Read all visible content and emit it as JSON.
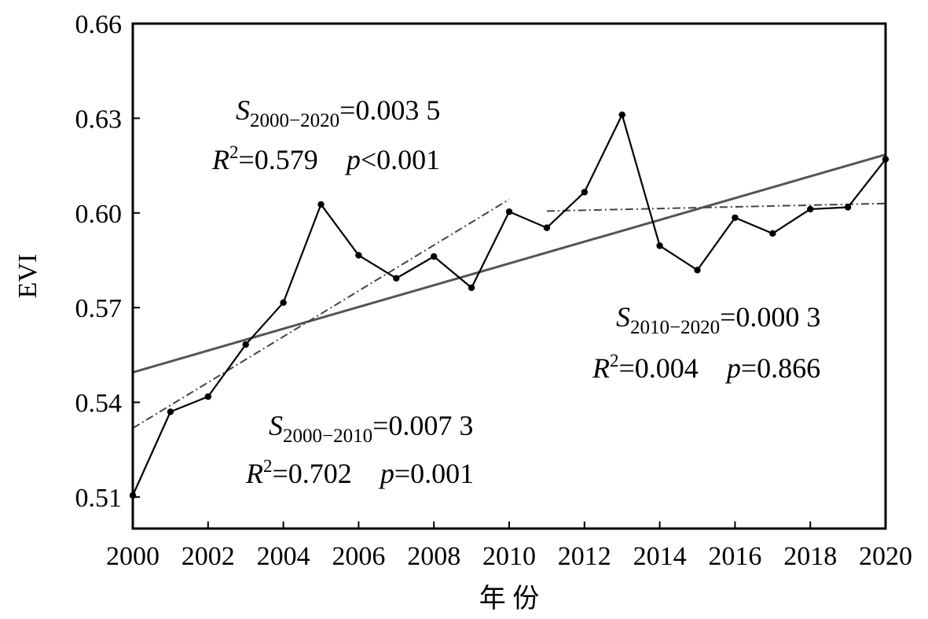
{
  "chart_data": {
    "type": "line",
    "title": "",
    "xlabel": "年 份",
    "ylabel": "EVI",
    "xlim": [
      2000,
      2020
    ],
    "ylim": [
      0.5,
      0.66
    ],
    "x_ticks": [
      "2000",
      "2002",
      "2004",
      "2006",
      "2008",
      "2010",
      "2012",
      "2014",
      "2016",
      "2018",
      "2020"
    ],
    "y_ticks": [
      "0.51",
      "0.54",
      "0.57",
      "0.60",
      "0.63",
      "0.66"
    ],
    "grid": false,
    "legend": "none",
    "series": [
      {
        "x": [
          2000,
          2001,
          2002,
          2003,
          2004,
          2005,
          2006,
          2007,
          2008,
          2009,
          2010,
          2011,
          2012,
          2013,
          2014,
          2015,
          2016,
          2017,
          2018,
          2019,
          2020
        ],
        "values": [
          0.5105,
          0.537,
          0.5418,
          0.5583,
          0.5716,
          0.6027,
          0.5866,
          0.5793,
          0.5862,
          0.5763,
          0.6004,
          0.5953,
          0.6066,
          0.6311,
          0.5896,
          0.5819,
          0.5985,
          0.5935,
          0.6012,
          0.6018,
          0.617
        ],
        "color": "#000000",
        "style": "solid-with-markers"
      }
    ],
    "trend_lines": [
      {
        "x": [
          2000,
          2020
        ],
        "y": [
          0.5495,
          0.6185
        ],
        "style": "solid",
        "color": "#555555"
      },
      {
        "x": [
          2000,
          2010
        ],
        "y": [
          0.5318,
          0.6043
        ],
        "style": "dash-dot",
        "color": "#444444"
      },
      {
        "x": [
          2011,
          2020
        ],
        "y": [
          0.6006,
          0.603
        ],
        "style": "dash-dot",
        "color": "#444444"
      }
    ],
    "annotations": [
      {
        "S_sub": "2000−2020",
        "S_val": "=0.003 5",
        "R2": "=0.579",
        "p": "<0.001"
      },
      {
        "S_sub": "2010−2020",
        "S_val": "=0.000 3",
        "R2": "=0.004",
        "p": "=0.866"
      },
      {
        "S_sub": "2000−2010",
        "S_val": "=0.007 3",
        "R2": "=0.702",
        "p": "=0.001"
      }
    ],
    "annotation_symbols": {
      "S": "S",
      "R": "R",
      "sup": "2",
      "p": "p"
    }
  }
}
